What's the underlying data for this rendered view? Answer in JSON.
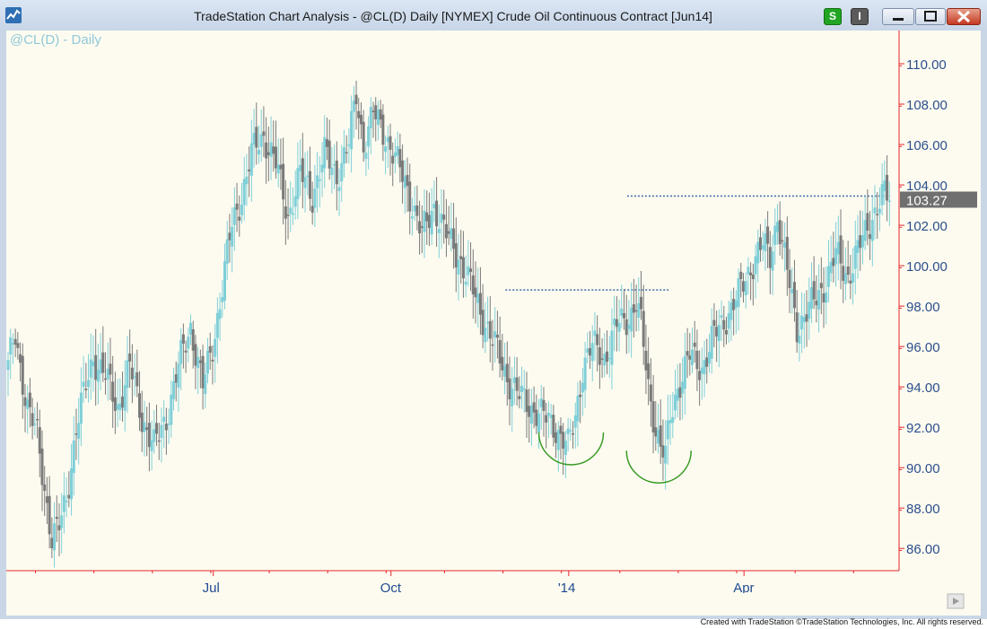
{
  "window": {
    "title": "TradeStation Chart Analysis - @CL(D) Daily [NYMEX] Crude Oil Continuous Contract [Jun14]",
    "buttons": {
      "s_label": "S",
      "i_label": "I"
    }
  },
  "footer": {
    "credit": "Created with TradeStation ©TradeStation Technologies, Inc. All rights reserved."
  },
  "chart_data": {
    "type": "candlestick",
    "title": "@CL(D) - Daily",
    "symbol": "@CL(D)",
    "interval": "Daily",
    "ylim": [
      84.9,
      111.6
    ],
    "y_ticks": [
      "110.00",
      "108.00",
      "106.00",
      "104.00",
      "102.00",
      "100.00",
      "98.00",
      "96.00",
      "94.00",
      "92.00",
      "90.00",
      "88.00",
      "86.00"
    ],
    "x_labels": [
      "Jul",
      "Oct",
      "'14",
      "Apr"
    ],
    "last_price": "103.27",
    "anchors": [
      [
        0,
        95.0
      ],
      [
        3,
        96.5
      ],
      [
        8,
        93.0
      ],
      [
        12,
        91.5
      ],
      [
        15,
        89.0
      ],
      [
        18,
        86.5
      ],
      [
        21,
        87.0
      ],
      [
        24,
        88.5
      ],
      [
        28,
        92.0
      ],
      [
        31,
        93.5
      ],
      [
        35,
        95.5
      ],
      [
        40,
        94.5
      ],
      [
        45,
        93.0
      ],
      [
        50,
        95.0
      ],
      [
        55,
        92.5
      ],
      [
        60,
        91.0
      ],
      [
        65,
        92.5
      ],
      [
        70,
        95.0
      ],
      [
        75,
        97.0
      ],
      [
        80,
        94.0
      ],
      [
        84,
        96.0
      ],
      [
        88,
        99.0
      ],
      [
        92,
        102.0
      ],
      [
        96,
        103.5
      ],
      [
        100,
        105.5
      ],
      [
        105,
        106.5
      ],
      [
        110,
        105.0
      ],
      [
        115,
        102.5
      ],
      [
        120,
        104.5
      ],
      [
        125,
        103.5
      ],
      [
        130,
        105.5
      ],
      [
        135,
        104.5
      ],
      [
        140,
        106.0
      ],
      [
        143,
        108.5
      ],
      [
        146,
        106.0
      ],
      [
        150,
        107.5
      ],
      [
        155,
        106.5
      ],
      [
        160,
        105.0
      ],
      [
        165,
        103.5
      ],
      [
        170,
        101.5
      ],
      [
        175,
        103.0
      ],
      [
        180,
        101.5
      ],
      [
        185,
        100.5
      ],
      [
        190,
        99.0
      ],
      [
        195,
        97.5
      ],
      [
        200,
        96.0
      ],
      [
        205,
        94.5
      ],
      [
        210,
        93.5
      ],
      [
        215,
        93.0
      ],
      [
        220,
        92.5
      ],
      [
        225,
        92.0
      ],
      [
        230,
        91.0
      ],
      [
        233,
        92.5
      ],
      [
        236,
        95.0
      ],
      [
        240,
        96.0
      ],
      [
        245,
        95.5
      ],
      [
        250,
        97.0
      ],
      [
        255,
        97.5
      ],
      [
        258,
        98.2
      ],
      [
        260,
        97.0
      ],
      [
        263,
        94.0
      ],
      [
        266,
        92.0
      ],
      [
        268,
        91.0
      ],
      [
        270,
        90.5
      ],
      [
        272,
        92.5
      ],
      [
        275,
        94.0
      ],
      [
        280,
        95.5
      ],
      [
        285,
        95.0
      ],
      [
        290,
        96.5
      ],
      [
        295,
        97.5
      ],
      [
        300,
        98.5
      ],
      [
        305,
        100.0
      ],
      [
        310,
        101.0
      ],
      [
        313,
        100.5
      ],
      [
        316,
        102.5
      ],
      [
        318,
        101.0
      ],
      [
        321,
        99.0
      ],
      [
        324,
        97.0
      ],
      [
        327,
        97.5
      ],
      [
        330,
        98.0
      ],
      [
        335,
        99.0
      ],
      [
        340,
        100.5
      ],
      [
        345,
        99.5
      ],
      [
        350,
        101.0
      ],
      [
        355,
        102.5
      ],
      [
        360,
        103.5
      ],
      [
        362,
        103.3
      ]
    ],
    "annotations": [
      {
        "type": "resistance-line",
        "level": 98.8
      },
      {
        "type": "resistance-line",
        "level": 103.45
      },
      {
        "type": "rounded-bottom-arc"
      },
      {
        "type": "rounded-bottom-arc"
      }
    ],
    "colors": {
      "up": "#7fcfd8",
      "down": "#7a7a7a",
      "axis": "#e8252a",
      "ylabel": "#2c4f8c",
      "xlabel": "#1f4a8f",
      "title": "#8fc8d8",
      "last_badge": "#6f6f6f",
      "arc": "#3a9b26",
      "guide": "#3b6aa8"
    }
  }
}
